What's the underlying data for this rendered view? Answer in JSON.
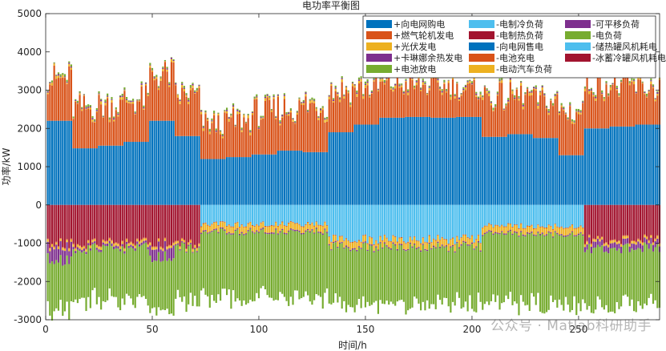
{
  "chart_data": {
    "type": "bar",
    "stacked": true,
    "title": "电功率平衡图",
    "xlabel": "时间/h",
    "ylabel": "功率/kW",
    "xlim": [
      0,
      288
    ],
    "ylim": [
      -3000,
      5000
    ],
    "xticks": [
      0,
      50,
      100,
      150,
      200,
      250
    ],
    "yticks": [
      -3000,
      -2000,
      -1000,
      0,
      1000,
      2000,
      3000,
      4000,
      5000
    ],
    "legend_position": "top-right",
    "legend_columns": 3,
    "x_start": 1,
    "x_end": 288,
    "series": [
      {
        "name": "+向电网购电",
        "color": "#0072BD",
        "sign": "positive",
        "segments": [
          {
            "from": 1,
            "to": 12,
            "value": 2200
          },
          {
            "from": 13,
            "to": 24,
            "value": 1480
          },
          {
            "from": 25,
            "to": 36,
            "value": 1550
          },
          {
            "from": 37,
            "to": 48,
            "value": 1650
          },
          {
            "from": 49,
            "to": 60,
            "value": 2200
          },
          {
            "from": 61,
            "to": 72,
            "value": 1800
          },
          {
            "from": 73,
            "to": 84,
            "value": 1200
          },
          {
            "from": 85,
            "to": 96,
            "value": 1250
          },
          {
            "from": 97,
            "to": 108,
            "value": 1320
          },
          {
            "from": 109,
            "to": 120,
            "value": 1420
          },
          {
            "from": 121,
            "to": 132,
            "value": 1380
          },
          {
            "from": 133,
            "to": 144,
            "value": 1900
          },
          {
            "from": 145,
            "to": 156,
            "value": 2100
          },
          {
            "from": 157,
            "to": 168,
            "value": 2280
          },
          {
            "from": 169,
            "to": 180,
            "value": 2300
          },
          {
            "from": 181,
            "to": 192,
            "value": 2280
          },
          {
            "from": 193,
            "to": 204,
            "value": 2300
          },
          {
            "from": 205,
            "to": 216,
            "value": 1780
          },
          {
            "from": 217,
            "to": 228,
            "value": 1850
          },
          {
            "from": 229,
            "to": 240,
            "value": 1750
          },
          {
            "from": 241,
            "to": 252,
            "value": 1300
          },
          {
            "from": 253,
            "to": 264,
            "value": 2000
          },
          {
            "from": 265,
            "to": 276,
            "value": 2050
          },
          {
            "from": 277,
            "to": 288,
            "value": 2100
          }
        ]
      },
      {
        "name": "+燃气轮机发电",
        "color": "#D95319",
        "sign": "positive",
        "segments": [
          {
            "from": 1,
            "to": 12,
            "value": 1150
          },
          {
            "from": 13,
            "to": 24,
            "value": 1100
          },
          {
            "from": 25,
            "to": 36,
            "value": 1100
          },
          {
            "from": 37,
            "to": 48,
            "value": 1150
          },
          {
            "from": 49,
            "to": 60,
            "value": 1250
          },
          {
            "from": 61,
            "to": 72,
            "value": 1100
          },
          {
            "from": 73,
            "to": 84,
            "value": 950
          },
          {
            "from": 85,
            "to": 96,
            "value": 1000
          },
          {
            "from": 97,
            "to": 108,
            "value": 1150
          },
          {
            "from": 109,
            "to": 120,
            "value": 1150
          },
          {
            "from": 121,
            "to": 132,
            "value": 1300
          },
          {
            "from": 133,
            "to": 144,
            "value": 1150
          },
          {
            "from": 145,
            "to": 156,
            "value": 1000
          },
          {
            "from": 157,
            "to": 168,
            "value": 900
          },
          {
            "from": 169,
            "to": 180,
            "value": 850
          },
          {
            "from": 181,
            "to": 192,
            "value": 850
          },
          {
            "from": 193,
            "to": 204,
            "value": 750
          },
          {
            "from": 205,
            "to": 216,
            "value": 1100
          },
          {
            "from": 217,
            "to": 228,
            "value": 1050
          },
          {
            "from": 229,
            "to": 240,
            "value": 1000
          },
          {
            "from": 241,
            "to": 252,
            "value": 1200
          },
          {
            "from": 253,
            "to": 264,
            "value": 1300
          },
          {
            "from": 265,
            "to": 276,
            "value": 1100
          },
          {
            "from": 277,
            "to": 288,
            "value": 1000
          }
        ]
      },
      {
        "name": "+光伏发电",
        "color": "#EDB120",
        "sign": "positive",
        "segments": [
          {
            "from": 1,
            "to": 288,
            "value": 40
          }
        ]
      },
      {
        "name": "+卡琳娜余热发电",
        "color": "#7E2F8E",
        "sign": "positive",
        "segments": [
          {
            "from": 1,
            "to": 288,
            "value": 20
          }
        ]
      },
      {
        "name": "+电池放电",
        "color": "#77AC30",
        "sign": "positive",
        "segments": [
          {
            "from": 1,
            "to": 288,
            "value": 30
          }
        ]
      },
      {
        "name": "-电制冷负荷",
        "color": "#4DBEEE",
        "sign": "negative",
        "segments": [
          {
            "from": 1,
            "to": 72,
            "value": 0
          },
          {
            "from": 73,
            "to": 132,
            "value": 500
          },
          {
            "from": 133,
            "to": 204,
            "value": 900
          },
          {
            "from": 205,
            "to": 252,
            "value": 550
          },
          {
            "from": 253,
            "to": 288,
            "value": 0
          }
        ]
      },
      {
        "name": "-电制热负荷",
        "color": "#A2142F",
        "sign": "negative",
        "segments": [
          {
            "from": 1,
            "to": 72,
            "value": 1000
          },
          {
            "from": 73,
            "to": 252,
            "value": 0
          },
          {
            "from": 253,
            "to": 288,
            "value": 900
          }
        ]
      },
      {
        "name": "-向电网售电",
        "color": "#0072BD",
        "sign": "negative",
        "segments": [
          {
            "from": 1,
            "to": 288,
            "value": 0
          }
        ]
      },
      {
        "name": "-电池充电",
        "color": "#D95319",
        "sign": "negative",
        "segments": [
          {
            "from": 1,
            "to": 288,
            "value": 20
          }
        ]
      },
      {
        "name": "-电动汽车负荷",
        "color": "#EDB120",
        "sign": "negative",
        "segments": [
          {
            "from": 1,
            "to": 72,
            "value": 60
          },
          {
            "from": 73,
            "to": 252,
            "value": 160
          },
          {
            "from": 253,
            "to": 288,
            "value": 60
          }
        ]
      },
      {
        "name": "-可平移负荷",
        "color": "#7E2F8E",
        "sign": "negative",
        "segments": [
          {
            "from": 1,
            "to": 12,
            "value": 350
          },
          {
            "from": 13,
            "to": 48,
            "value": 60
          },
          {
            "from": 49,
            "to": 60,
            "value": 300
          },
          {
            "from": 61,
            "to": 252,
            "value": 30
          },
          {
            "from": 253,
            "to": 288,
            "value": 150
          }
        ]
      },
      {
        "name": "-电负荷",
        "color": "#77AC30",
        "sign": "negative",
        "segments": [
          {
            "from": 1,
            "to": 72,
            "value": 1350
          },
          {
            "from": 73,
            "to": 132,
            "value": 1700
          },
          {
            "from": 133,
            "to": 204,
            "value": 1500
          },
          {
            "from": 205,
            "to": 252,
            "value": 1800
          },
          {
            "from": 253,
            "to": 288,
            "value": 1500
          }
        ]
      },
      {
        "name": "-储热罐风机耗电",
        "color": "#4DBEEE",
        "sign": "negative",
        "segments": [
          {
            "from": 1,
            "to": 288,
            "value": 0
          }
        ]
      },
      {
        "name": "-冰蓄冷罐风机耗电",
        "color": "#A2142F",
        "sign": "negative",
        "segments": [
          {
            "from": 1,
            "to": 288,
            "value": 0
          }
        ]
      }
    ]
  },
  "watermark": {
    "text": "公众号 · Matlab科研助手"
  }
}
